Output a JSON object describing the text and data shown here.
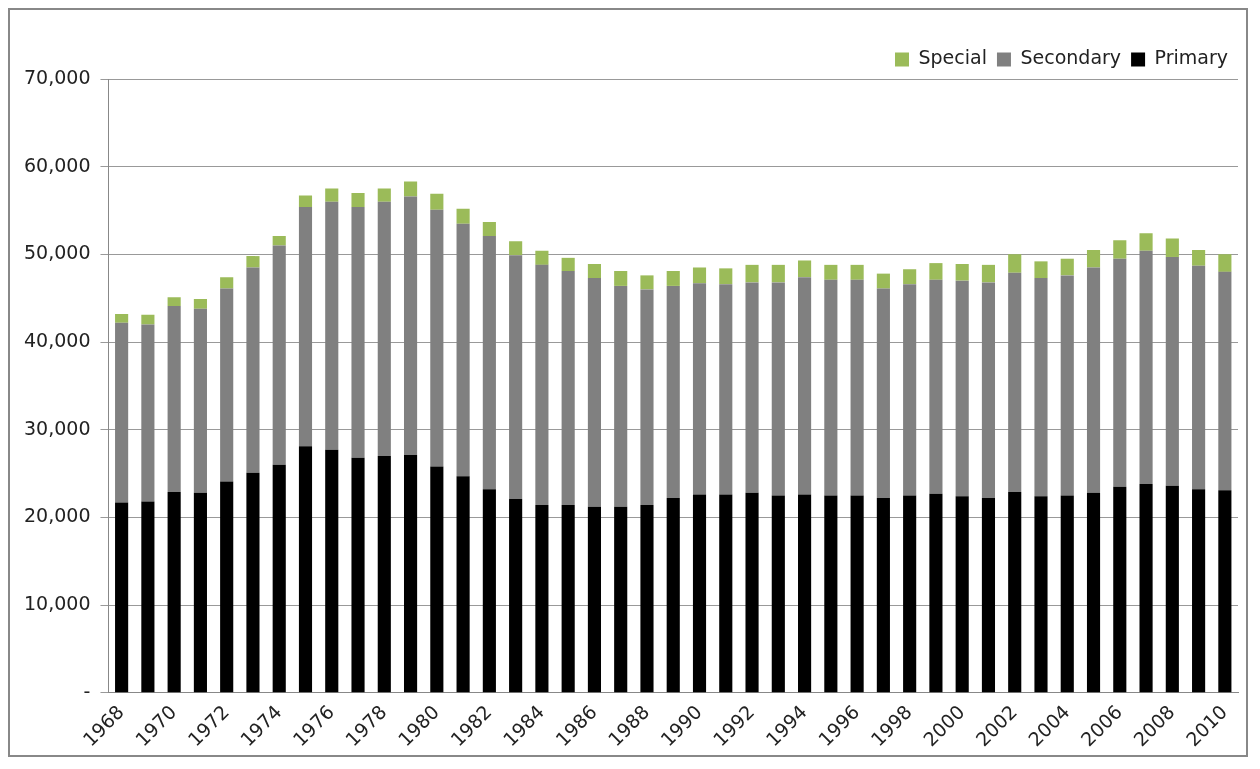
{
  "chart_data": {
    "type": "bar",
    "stacked": true,
    "categories": [
      "1968",
      null,
      "1970",
      null,
      "1972",
      null,
      "1974",
      null,
      "1976",
      null,
      "1978",
      null,
      "1980",
      null,
      "1982",
      null,
      "1984",
      null,
      "1986",
      null,
      "1988",
      null,
      "1990",
      null,
      "1992",
      null,
      "1994",
      null,
      "1996",
      null,
      "1998",
      null,
      "2000",
      null,
      "2002",
      null,
      "2004",
      null,
      "2006",
      null,
      "2008",
      null,
      "2010"
    ],
    "series": [
      {
        "name": "Primary",
        "color": "#000000",
        "values": [
          21700,
          21800,
          22900,
          22800,
          24100,
          25100,
          26000,
          28100,
          27700,
          26800,
          27000,
          27100,
          25800,
          24700,
          23200,
          22100,
          21400,
          21400,
          21200,
          21200,
          21400,
          22200,
          22600,
          22600,
          22800,
          22500,
          22600,
          22500,
          22500,
          22200,
          22500,
          22700,
          22400,
          22200,
          22900,
          22400,
          22500,
          22800,
          23500,
          23800,
          23600,
          23200,
          23100
        ]
      },
      {
        "name": "Secondary",
        "color": "#808080",
        "values": [
          20500,
          20200,
          21200,
          21000,
          22000,
          23400,
          25000,
          27300,
          28300,
          28600,
          29000,
          29500,
          29300,
          28800,
          28900,
          27800,
          27400,
          26700,
          26100,
          25200,
          24600,
          24200,
          24100,
          24000,
          24000,
          24300,
          24800,
          24600,
          24600,
          23900,
          24100,
          24400,
          24600,
          24600,
          25000,
          24900,
          25100,
          25700,
          26000,
          26600,
          26100,
          25500,
          24900
        ]
      },
      {
        "name": "Special",
        "color": "#9bbb59",
        "values": [
          1000,
          1100,
          1000,
          1100,
          1300,
          1300,
          1100,
          1300,
          1500,
          1600,
          1500,
          1700,
          1800,
          1700,
          1600,
          1600,
          1600,
          1500,
          1600,
          1700,
          1600,
          1700,
          1800,
          1800,
          2000,
          2000,
          1900,
          1700,
          1700,
          1700,
          1700,
          1900,
          1900,
          2000,
          2100,
          1900,
          1900,
          2000,
          2100,
          2000,
          2100,
          1800,
          2000
        ]
      }
    ],
    "ylim": [
      0,
      70000
    ],
    "yticks": [
      {
        "value": 0,
        "label": "-"
      },
      {
        "value": 10000,
        "label": "10,000"
      },
      {
        "value": 20000,
        "label": "20,000"
      },
      {
        "value": 30000,
        "label": "30,000"
      },
      {
        "value": 40000,
        "label": "40,000"
      },
      {
        "value": 50000,
        "label": "50,000"
      },
      {
        "value": 60000,
        "label": "60,000"
      },
      {
        "value": 70000,
        "label": "70,000"
      }
    ],
    "grid": "y",
    "legend": "top right"
  }
}
